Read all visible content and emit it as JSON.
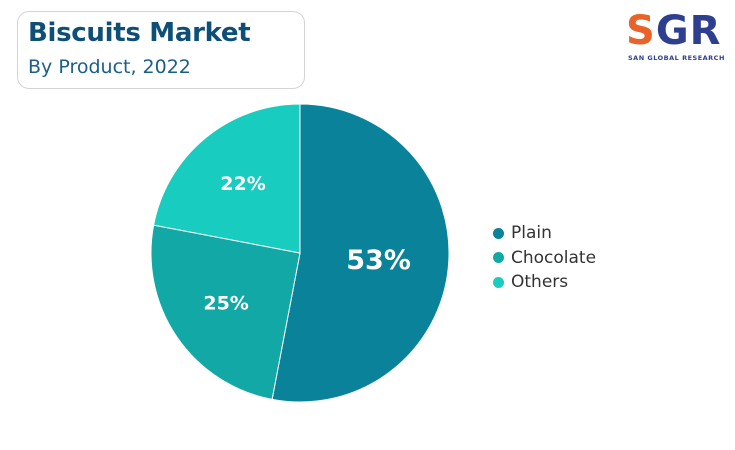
{
  "header": {
    "title": "Biscuits Market",
    "subtitle": "By Product, 2022"
  },
  "logo": {
    "letters_s": "S",
    "letters_gr": "GR",
    "tagline": "SAN GLOBAL RESEARCH"
  },
  "chart_data": {
    "type": "pie",
    "title": "Biscuits Market",
    "subtitle": "By Product, 2022",
    "categories": [
      "Plain",
      "Chocolate",
      "Others"
    ],
    "values": [
      53,
      25,
      22
    ],
    "value_labels": [
      "53%",
      "25%",
      "22%"
    ],
    "colors": [
      "#0a8299",
      "#11a8a6",
      "#19ccc0"
    ],
    "legend_position": "right"
  },
  "legend": {
    "items": [
      {
        "label": "Plain",
        "color": "#0a8299"
      },
      {
        "label": "Chocolate",
        "color": "#11a8a6"
      },
      {
        "label": "Others",
        "color": "#19ccc0"
      }
    ]
  }
}
